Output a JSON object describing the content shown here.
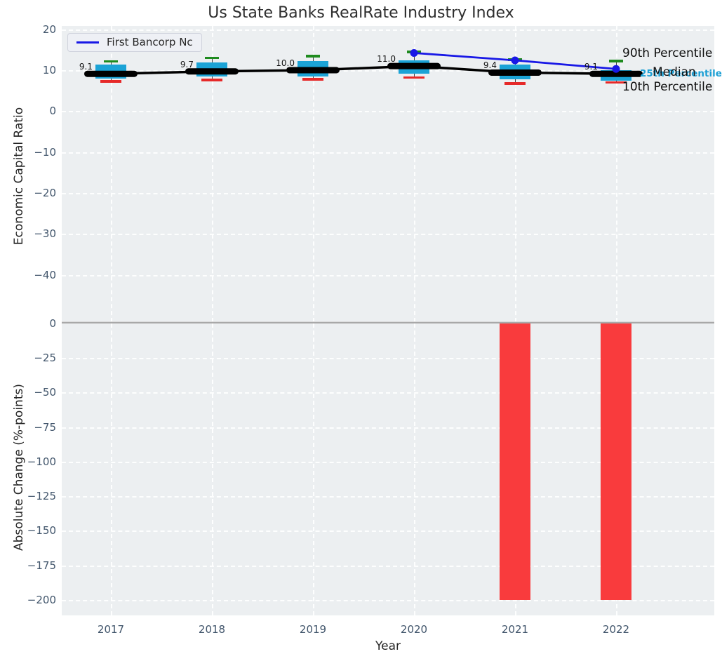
{
  "figure": {
    "title": "Us State Banks RealRate Industry Index",
    "xlabel": "Year",
    "plot_bg": "#eceff1",
    "divider_color": "#a8a8a8"
  },
  "legend": {
    "label": "First Bancorp Nc",
    "line_color": "#1818e6"
  },
  "chart_data": [
    {
      "type": "boxplot",
      "title": "Us State Banks RealRate Industry Index",
      "xlabel": "Year",
      "ylabel": "Economic Capital Ratio",
      "categories": [
        "2017",
        "2018",
        "2019",
        "2020",
        "2021",
        "2022"
      ],
      "yticks": [
        20,
        10,
        0,
        -10,
        -20,
        -30,
        -40
      ],
      "ylim": [
        -52,
        21
      ],
      "grid": "white-dashed",
      "legend_position": "upper-left",
      "boxes": [
        {
          "year": "2017",
          "p90": 12.2,
          "p75": 11.4,
          "median": 9.1,
          "p25": 7.9,
          "p10": 7.3
        },
        {
          "year": "2018",
          "p90": 13.0,
          "p75": 11.9,
          "median": 9.7,
          "p25": 8.5,
          "p10": 7.6
        },
        {
          "year": "2019",
          "p90": 13.5,
          "p75": 12.2,
          "median": 10.0,
          "p25": 8.5,
          "p10": 7.8
        },
        {
          "year": "2020",
          "p90": 14.5,
          "p75": 12.4,
          "median": 11.0,
          "p25": 9.2,
          "p10": 8.2
        },
        {
          "year": "2021",
          "p90": 12.6,
          "p75": 11.3,
          "median": 9.4,
          "p25": 7.7,
          "p10": 6.8
        },
        {
          "year": "2022",
          "p90": 12.3,
          "p75": 10.0,
          "median": 9.1,
          "p25": 7.5,
          "p10": 7.0
        }
      ],
      "median_labels": [
        "9.1",
        "9.7",
        "10.0",
        "11.0",
        "9.4",
        "9.1"
      ],
      "series": [
        {
          "name": "First Bancorp Nc",
          "x": [
            "2020",
            "2021",
            "2022"
          ],
          "values": [
            14.2,
            12.4,
            10.3
          ],
          "color": "#1818e6",
          "marker": "circle"
        }
      ],
      "colors": {
        "box": "#1ba3d6",
        "p90_cap": "#1e8b1e",
        "p10_cap": "#e62929",
        "median": "#000000",
        "whisker": "#3a3a3a"
      },
      "right_labels": [
        {
          "text": "90th Percentile",
          "color": "#0d0d0d"
        },
        {
          "text": "25th Percentile",
          "color": "#1b9fd4"
        },
        {
          "text": "Median",
          "color": "#0d0d0d"
        },
        {
          "text": "10th Percentile",
          "color": "#0d0d0d"
        }
      ]
    },
    {
      "type": "bar",
      "xlabel": "Year",
      "ylabel": "Absolute Change (%-points)",
      "categories": [
        "2017",
        "2018",
        "2019",
        "2020",
        "2021",
        "2022"
      ],
      "values": [
        0,
        0,
        0,
        0,
        -200,
        -200
      ],
      "yticks": [
        0,
        -25,
        -50,
        -75,
        -100,
        -125,
        -150,
        -175,
        -200
      ],
      "ylim": [
        -211,
        0
      ],
      "grid": "white-dashed",
      "bar_color": "#f93b3d",
      "zero_line_color": "#a8a8a8"
    }
  ]
}
